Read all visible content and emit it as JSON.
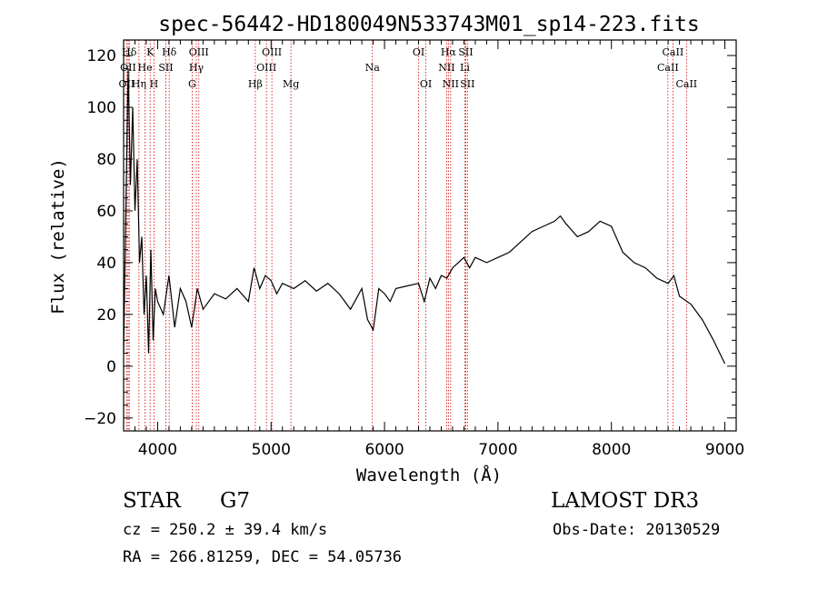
{
  "chart_data": {
    "type": "line",
    "title": "spec-56442-HD180049N533743M01_sp14-223.fits",
    "xlabel": "Wavelength (Å)",
    "ylabel": "Flux (relative)",
    "xlim": [
      3700,
      9100
    ],
    "ylim": [
      -25,
      126
    ],
    "xticks": [
      4000,
      5000,
      6000,
      7000,
      8000,
      9000
    ],
    "yticks": [
      -20,
      0,
      20,
      40,
      60,
      80,
      100,
      120
    ],
    "series": [
      {
        "x": [
          3700,
          3720,
          3740,
          3760,
          3780,
          3800,
          3820,
          3840,
          3860,
          3880,
          3900,
          3920,
          3940,
          3960,
          3980,
          4000,
          4050,
          4100,
          4150,
          4200,
          4250,
          4300,
          4350,
          4400,
          4500,
          4600,
          4700,
          4800,
          4850,
          4900,
          4950,
          5000,
          5050,
          5100,
          5200,
          5300,
          5400,
          5500,
          5600,
          5650,
          5700,
          5750,
          5800,
          5850,
          5900,
          5950,
          6000,
          6050,
          6100,
          6200,
          6300,
          6350,
          6400,
          6450,
          6500,
          6550,
          6600,
          6650,
          6700,
          6750,
          6800,
          6900,
          7000,
          7100,
          7200,
          7300,
          7400,
          7500,
          7550,
          7600,
          7700,
          7800,
          7900,
          8000,
          8100,
          8200,
          8300,
          8400,
          8500,
          8550,
          8600,
          8700,
          8800,
          8900,
          9000
        ],
        "y": [
          5,
          60,
          115,
          70,
          100,
          60,
          80,
          40,
          50,
          20,
          35,
          5,
          45,
          10,
          30,
          25,
          20,
          35,
          15,
          30,
          25,
          15,
          30,
          22,
          28,
          26,
          30,
          25,
          38,
          30,
          35,
          33,
          28,
          32,
          30,
          33,
          29,
          32,
          28,
          25,
          22,
          26,
          30,
          18,
          14,
          30,
          28,
          25,
          30,
          31,
          32,
          25,
          34,
          30,
          35,
          34,
          38,
          40,
          42,
          38,
          42,
          40,
          42,
          44,
          48,
          52,
          54,
          56,
          58,
          55,
          50,
          52,
          56,
          54,
          44,
          40,
          38,
          34,
          32,
          35,
          27,
          24,
          18,
          10,
          1
        ]
      }
    ],
    "line_labels": [
      {
        "text": "OII",
        "x": 3727,
        "row": 3
      },
      {
        "text": "Hδ",
        "x": 3750,
        "row": 1
      },
      {
        "text": "OII",
        "x": 3740,
        "row": 2
      },
      {
        "text": "Hη",
        "x": 3835,
        "row": 3
      },
      {
        "text": "He",
        "x": 3889,
        "row": 2
      },
      {
        "text": "K",
        "x": 3934,
        "row": 1
      },
      {
        "text": "H",
        "x": 3968,
        "row": 3
      },
      {
        "text": "SII",
        "x": 4072,
        "row": 2
      },
      {
        "text": "Hδ",
        "x": 4102,
        "row": 1
      },
      {
        "text": "OIII",
        "x": 4363,
        "row": 1
      },
      {
        "text": "Hγ",
        "x": 4341,
        "row": 2
      },
      {
        "text": "G",
        "x": 4304,
        "row": 3
      },
      {
        "text": "OIII",
        "x": 5007,
        "row": 1
      },
      {
        "text": "OIII",
        "x": 4959,
        "row": 2
      },
      {
        "text": "Hβ",
        "x": 4861,
        "row": 3
      },
      {
        "text": "Mg",
        "x": 5175,
        "row": 3
      },
      {
        "text": "Na",
        "x": 5893,
        "row": 2
      },
      {
        "text": "OI",
        "x": 6300,
        "row": 1
      },
      {
        "text": "OI",
        "x": 6364,
        "row": 3
      },
      {
        "text": "Hα",
        "x": 6563,
        "row": 1
      },
      {
        "text": "SII",
        "x": 6716,
        "row": 1
      },
      {
        "text": "NII",
        "x": 6548,
        "row": 2
      },
      {
        "text": "Li",
        "x": 6708,
        "row": 2
      },
      {
        "text": "NII",
        "x": 6583,
        "row": 3
      },
      {
        "text": "SII",
        "x": 6731,
        "row": 3
      },
      {
        "text": "CaII",
        "x": 8542,
        "row": 1
      },
      {
        "text": "CaII",
        "x": 8498,
        "row": 2
      },
      {
        "text": "CaII",
        "x": 8662,
        "row": 3
      }
    ],
    "grid": false
  },
  "info": {
    "class_label": "STAR",
    "subclass": "G7",
    "survey": "LAMOST DR3",
    "cz": "cz = 250.2 ± 39.4 km/s",
    "obs_date": "Obs-Date: 20130529",
    "radec": "RA = 266.81259, DEC =  54.05736"
  },
  "colors": {
    "spectrum": "#000000",
    "line_markers": "#cc0000",
    "axes": "#000000"
  }
}
